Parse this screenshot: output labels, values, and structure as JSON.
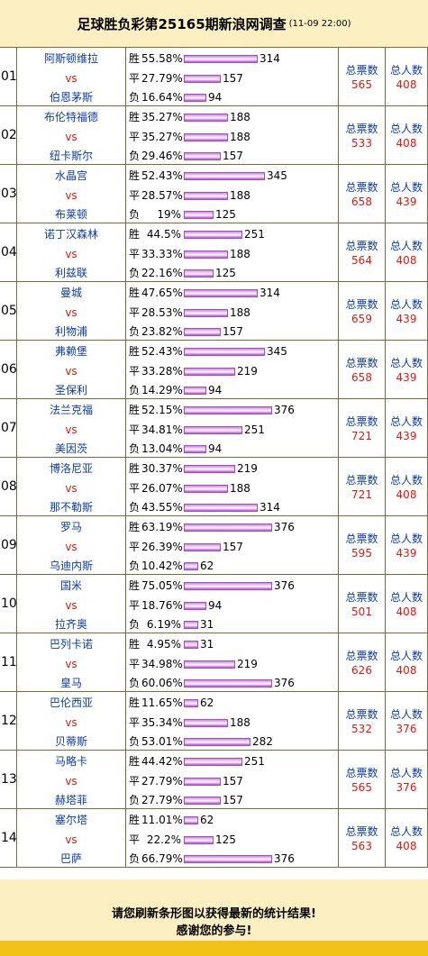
{
  "header": {
    "title": "足球胜负彩第25165期新浪网调查",
    "time": "(11-09 22:00)"
  },
  "labels": {
    "win": "胜",
    "draw": "平",
    "lose": "负",
    "vs": "vs",
    "total_votes": "总票数",
    "total_people": "总人数"
  },
  "matches": [
    {
      "num": "01",
      "home": "阿斯顿维拉",
      "away": "伯恩茅斯",
      "win": {
        "pct": "55.58%",
        "votes": 314
      },
      "draw": {
        "pct": "27.79%",
        "votes": 157
      },
      "lose": {
        "pct": "16.64%",
        "votes": 94
      },
      "total_votes": "565",
      "total_people": "408"
    },
    {
      "num": "02",
      "home": "布伦特福德",
      "away": "纽卡斯尔",
      "win": {
        "pct": "35.27%",
        "votes": 188
      },
      "draw": {
        "pct": "35.27%",
        "votes": 188
      },
      "lose": {
        "pct": "29.46%",
        "votes": 157
      },
      "total_votes": "533",
      "total_people": "408"
    },
    {
      "num": "03",
      "home": "水晶宫",
      "away": "布莱顿",
      "win": {
        "pct": "52.43%",
        "votes": 345
      },
      "draw": {
        "pct": "28.57%",
        "votes": 188
      },
      "lose": {
        "pct": "19%",
        "votes": 125
      },
      "total_votes": "658",
      "total_people": "439"
    },
    {
      "num": "04",
      "home": "诺丁汉森林",
      "away": "利兹联",
      "win": {
        "pct": "44.5%",
        "votes": 251
      },
      "draw": {
        "pct": "33.33%",
        "votes": 188
      },
      "lose": {
        "pct": "22.16%",
        "votes": 125
      },
      "total_votes": "564",
      "total_people": "408"
    },
    {
      "num": "05",
      "home": "曼城",
      "away": "利物浦",
      "win": {
        "pct": "47.65%",
        "votes": 314
      },
      "draw": {
        "pct": "28.53%",
        "votes": 188
      },
      "lose": {
        "pct": "23.82%",
        "votes": 157
      },
      "total_votes": "659",
      "total_people": "439"
    },
    {
      "num": "06",
      "home": "弗赖堡",
      "away": "圣保利",
      "win": {
        "pct": "52.43%",
        "votes": 345
      },
      "draw": {
        "pct": "33.28%",
        "votes": 219
      },
      "lose": {
        "pct": "14.29%",
        "votes": 94
      },
      "total_votes": "658",
      "total_people": "439"
    },
    {
      "num": "07",
      "home": "法兰克福",
      "away": "美因茨",
      "win": {
        "pct": "52.15%",
        "votes": 376
      },
      "draw": {
        "pct": "34.81%",
        "votes": 251
      },
      "lose": {
        "pct": "13.04%",
        "votes": 94
      },
      "total_votes": "721",
      "total_people": "439"
    },
    {
      "num": "08",
      "home": "博洛尼亚",
      "away": "那不勒斯",
      "win": {
        "pct": "30.37%",
        "votes": 219
      },
      "draw": {
        "pct": "26.07%",
        "votes": 188
      },
      "lose": {
        "pct": "43.55%",
        "votes": 314
      },
      "total_votes": "721",
      "total_people": "408"
    },
    {
      "num": "09",
      "home": "罗马",
      "away": "乌迪内斯",
      "win": {
        "pct": "63.19%",
        "votes": 376
      },
      "draw": {
        "pct": "26.39%",
        "votes": 157
      },
      "lose": {
        "pct": "10.42%",
        "votes": 62
      },
      "total_votes": "595",
      "total_people": "439"
    },
    {
      "num": "10",
      "home": "国米",
      "away": "拉齐奥",
      "win": {
        "pct": "75.05%",
        "votes": 376
      },
      "draw": {
        "pct": "18.76%",
        "votes": 94
      },
      "lose": {
        "pct": "6.19%",
        "votes": 31
      },
      "total_votes": "501",
      "total_people": "408"
    },
    {
      "num": "11",
      "home": "巴列卡诺",
      "away": "皇马",
      "win": {
        "pct": "4.95%",
        "votes": 31
      },
      "draw": {
        "pct": "34.98%",
        "votes": 219
      },
      "lose": {
        "pct": "60.06%",
        "votes": 376
      },
      "total_votes": "626",
      "total_people": "408"
    },
    {
      "num": "12",
      "home": "巴伦西亚",
      "away": "贝蒂斯",
      "win": {
        "pct": "11.65%",
        "votes": 62
      },
      "draw": {
        "pct": "35.34%",
        "votes": 188
      },
      "lose": {
        "pct": "53.01%",
        "votes": 282
      },
      "total_votes": "532",
      "total_people": "376"
    },
    {
      "num": "13",
      "home": "马略卡",
      "away": "赫塔菲",
      "win": {
        "pct": "44.42%",
        "votes": 251
      },
      "draw": {
        "pct": "27.79%",
        "votes": 157
      },
      "lose": {
        "pct": "27.79%",
        "votes": 157
      },
      "total_votes": "565",
      "total_people": "376"
    },
    {
      "num": "14",
      "home": "塞尔塔",
      "away": "巴萨",
      "win": {
        "pct": "11.01%",
        "votes": 62
      },
      "draw": {
        "pct": "22.2%",
        "votes": 125
      },
      "lose": {
        "pct": "66.79%",
        "votes": 376
      },
      "total_votes": "563",
      "total_people": "408"
    }
  ],
  "footer": {
    "line1": "请您刷新条形图以获得最新的统计结果!",
    "line2": "感谢您的参与!"
  },
  "colors": {
    "header_bg": "#fcefc2",
    "team": "#0a3ba8",
    "vs": "#e0170f",
    "bar": "#d48ee8",
    "footer_strip": "#f2c316"
  }
}
